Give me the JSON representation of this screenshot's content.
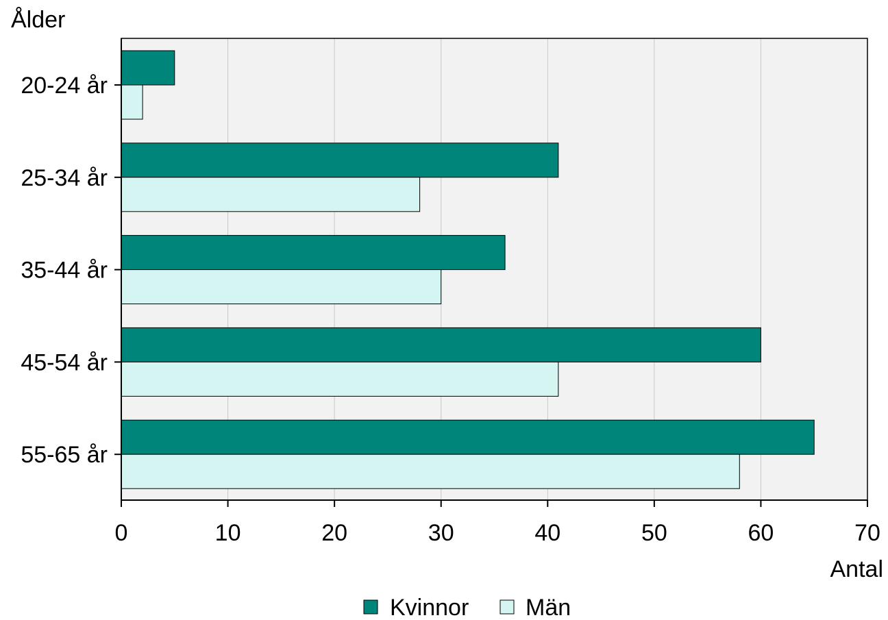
{
  "chart_data": {
    "type": "bar",
    "orientation": "horizontal",
    "ylabel": "Ålder",
    "xlabel": "Antal",
    "categories": [
      "20-24 år",
      "25-34 år",
      "35-44 år",
      "45-54 år",
      "55-65 år"
    ],
    "series": [
      {
        "name": "Kvinnor",
        "values": [
          5,
          41,
          36,
          60,
          65
        ],
        "color": "#00857a"
      },
      {
        "name": "Män",
        "values": [
          2,
          28,
          30,
          41,
          58
        ],
        "color": "#d4f5f2"
      }
    ],
    "xlim": [
      0,
      70
    ],
    "xticks": [
      0,
      10,
      20,
      30,
      40,
      50,
      60,
      70
    ],
    "grid": true,
    "legend": "bottom",
    "plot_background": "#f2f2f2"
  }
}
